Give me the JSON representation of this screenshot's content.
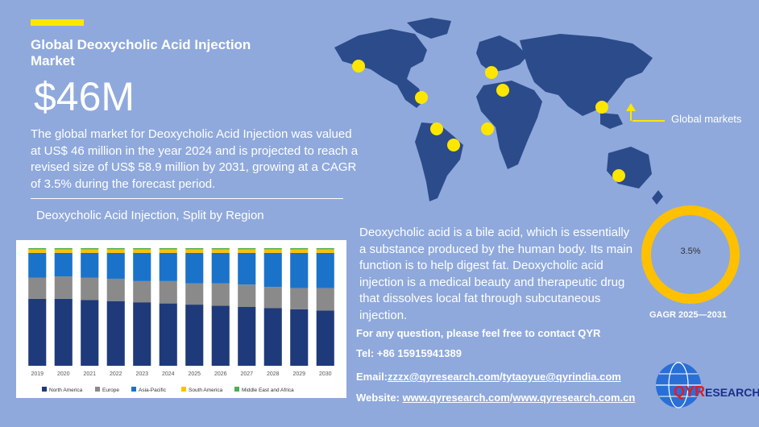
{
  "header": {
    "title": "Global Deoxycholic Acid Injection Market",
    "value": "$46M",
    "description": "The global market for Deoxycholic Acid Injection was valued at US$ 46 million in the year 2024 and is projected to reach a revised size of US$ 58.9 million by 2031, growing at a CAGR of 3.5% during the forecast period."
  },
  "split_title": "Deoxycholic Acid Injection, Split by Region",
  "map": {
    "label": "Global markets"
  },
  "info": "Deoxycholic acid is a bile acid, which is essentially a substance produced by the human body. Its main function is to help digest fat. Deoxycholic acid injection is a medical beauty and therapeutic drug that dissolves local fat through subcutaneous injection.",
  "cagr": {
    "value": "3.5%",
    "label": "GAGR 2025—2031"
  },
  "contact": {
    "question": "For any question, please feel free to contact QYR",
    "tel": "Tel: +86 15915941389",
    "email_label": "Email:",
    "email1": "zzzx@qyresearch.com",
    "sep": "/",
    "email2": "tytaoyue@qyrindia.com",
    "website_label": "Website: ",
    "web1": "www.qyresearch.com",
    "web2": "www.qyresearch.com.cn"
  },
  "logo": {
    "brand": "QYR",
    "suffix": "ESEARCH"
  },
  "colors": {
    "background": "#8fa9dc",
    "accent": "#ffe600",
    "map": "#2c4b8a",
    "donut": "#ffc000"
  },
  "chart_data": {
    "type": "bar",
    "stacked": true,
    "percent": true,
    "categories": [
      "2019",
      "2020",
      "2021",
      "2022",
      "2023",
      "2024",
      "2025",
      "2026",
      "2027",
      "2028",
      "2029",
      "2030"
    ],
    "series": [
      {
        "name": "North America",
        "color": "#1f3a7a",
        "values": [
          0.57,
          0.57,
          0.56,
          0.55,
          0.54,
          0.53,
          0.52,
          0.51,
          0.5,
          0.49,
          0.48,
          0.47
        ]
      },
      {
        "name": "Europe",
        "color": "#8a8a8a",
        "values": [
          0.18,
          0.19,
          0.19,
          0.19,
          0.18,
          0.19,
          0.18,
          0.19,
          0.19,
          0.18,
          0.18,
          0.19
        ]
      },
      {
        "name": "Asia-Pacific",
        "color": "#1a73c9",
        "values": [
          0.21,
          0.2,
          0.21,
          0.22,
          0.24,
          0.24,
          0.26,
          0.26,
          0.27,
          0.29,
          0.3,
          0.3
        ]
      },
      {
        "name": "South America",
        "color": "#ffc000",
        "values": [
          0.03,
          0.03,
          0.03,
          0.03,
          0.03,
          0.03,
          0.03,
          0.03,
          0.03,
          0.03,
          0.03,
          0.03
        ]
      },
      {
        "name": "Middle East and Africa",
        "color": "#4caf50",
        "values": [
          0.01,
          0.01,
          0.01,
          0.01,
          0.01,
          0.01,
          0.01,
          0.01,
          0.01,
          0.01,
          0.01,
          0.01
        ]
      }
    ],
    "ylim": [
      0,
      1
    ],
    "legend": "bottom"
  }
}
